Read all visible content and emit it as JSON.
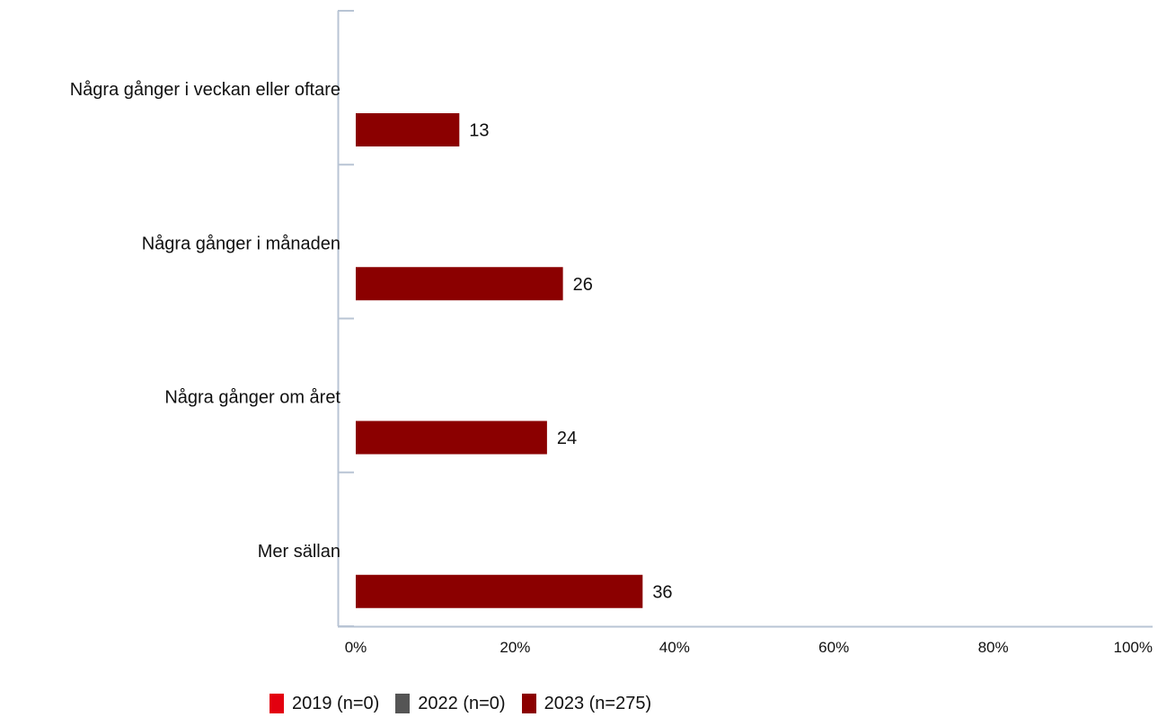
{
  "chart_data": {
    "type": "bar",
    "orientation": "horizontal",
    "categories": [
      "Några gånger i veckan eller oftare",
      "Några gånger i månaden",
      "Några gånger om året",
      "Mer sällan"
    ],
    "series": [
      {
        "name": "2019 (n=0)",
        "color": "#e3000f",
        "values": [
          null,
          null,
          null,
          null
        ]
      },
      {
        "name": "2022 (n=0)",
        "color": "#555555",
        "values": [
          null,
          null,
          null,
          null
        ]
      },
      {
        "name": "2023 (n=275)",
        "color": "#8b0000",
        "values": [
          13,
          26,
          24,
          36
        ]
      }
    ],
    "xlim": [
      0,
      100
    ],
    "x_ticks": [
      "0%",
      "20%",
      "40%",
      "60%",
      "80%",
      "100%"
    ],
    "title": "",
    "xlabel": "",
    "ylabel": "",
    "grid": false,
    "legend_position": "bottom"
  }
}
